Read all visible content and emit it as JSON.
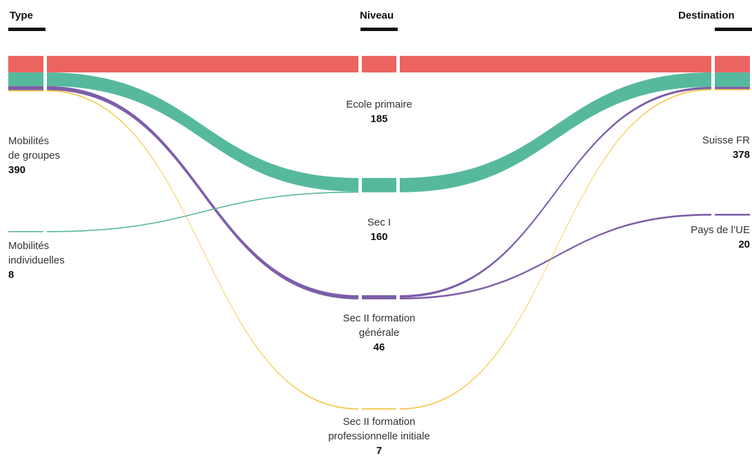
{
  "columns": {
    "type": "Type",
    "niveau": "Niveau",
    "destination": "Destination"
  },
  "colors": {
    "ecole_primaire": "#ec6461",
    "sec_1": "#56b99d",
    "sec_2_generale": "#7d5ea9",
    "sec_2_pro": "#f3c234"
  },
  "chart_data": {
    "type": "sankey",
    "nodes": {
      "type": [
        {
          "id": "groupes",
          "lines": [
            "Mobilités",
            "de groupes"
          ],
          "value": 390
        },
        {
          "id": "indiv",
          "lines": [
            "Mobilités",
            "individuelles"
          ],
          "value": 8
        }
      ],
      "niveau": [
        {
          "id": "primaire",
          "lines": [
            "Ecole primaire"
          ],
          "value": 185
        },
        {
          "id": "sec1",
          "lines": [
            "Sec I"
          ],
          "value": 160
        },
        {
          "id": "sec2g",
          "lines": [
            "Sec II formation",
            "générale"
          ],
          "value": 46
        },
        {
          "id": "sec2p",
          "lines": [
            "Sec II formation",
            "professionnelle initiale"
          ],
          "value": 7
        }
      ],
      "destination": [
        {
          "id": "suisse",
          "lines": [
            "Suisse FR"
          ],
          "value": 378
        },
        {
          "id": "ue",
          "lines": [
            "Pays de l’UE"
          ],
          "value": 20
        }
      ]
    },
    "links_type_niveau": [
      {
        "source": "groupes",
        "target": "primaire",
        "value": 185
      },
      {
        "source": "groupes",
        "target": "sec1",
        "value": 152
      },
      {
        "source": "groupes",
        "target": "sec2g",
        "value": 46
      },
      {
        "source": "groupes",
        "target": "sec2p",
        "value": 7
      },
      {
        "source": "indiv",
        "target": "sec1",
        "value": 8
      }
    ],
    "links_niveau_destination": [
      {
        "source": "primaire",
        "target": "suisse",
        "value": 185
      },
      {
        "source": "sec1",
        "target": "suisse",
        "value": 160
      },
      {
        "source": "sec2g",
        "target": "suisse",
        "value": 26
      },
      {
        "source": "sec2g",
        "target": "ue",
        "value": 20
      },
      {
        "source": "sec2p",
        "target": "suisse",
        "value": 7
      }
    ]
  }
}
